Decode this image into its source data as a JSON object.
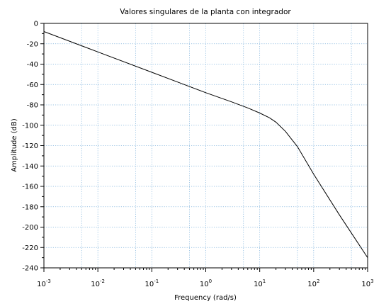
{
  "chart_data": {
    "type": "line",
    "title": "Valores singulares de la planta con integrador",
    "xlabel": "Frequency (rad/s)",
    "ylabel": "Amplitude (dB)",
    "xscale": "log",
    "xlim": [
      0.001,
      1000
    ],
    "ylim": [
      -240,
      0
    ],
    "grid": true,
    "x_ticks": [
      {
        "base": "10",
        "exp": "-3"
      },
      {
        "base": "10",
        "exp": "-2"
      },
      {
        "base": "10",
        "exp": "-1"
      },
      {
        "base": "10",
        "exp": "0"
      },
      {
        "base": "10",
        "exp": "1"
      },
      {
        "base": "10",
        "exp": "2"
      },
      {
        "base": "10",
        "exp": "3"
      }
    ],
    "y_ticks": [
      "0",
      "-20",
      "-40",
      "-60",
      "-80",
      "-100",
      "-120",
      "-140",
      "-160",
      "-180",
      "-200",
      "-220",
      "-240"
    ],
    "series": [
      {
        "x": [
          0.001,
          0.01,
          0.1,
          1,
          3,
          6,
          10,
          15,
          20,
          30,
          50,
          100,
          300,
          1000
        ],
        "y": [
          -8,
          -28,
          -48,
          -68,
          -77,
          -83,
          -88,
          -92.5,
          -97,
          -106,
          -121,
          -148,
          -188,
          -230
        ]
      }
    ]
  }
}
